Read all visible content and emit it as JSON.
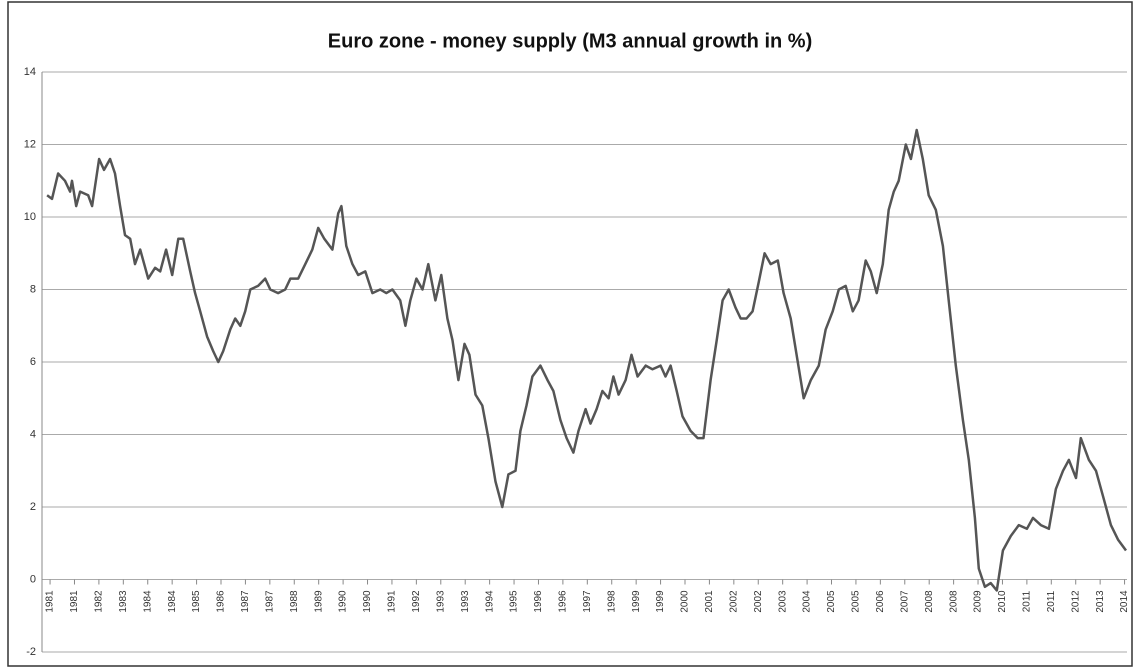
{
  "chart_data": {
    "type": "line",
    "title": "Euro zone - money supply (M3 annual growth in %)",
    "x": [
      -0.12,
      0.08,
      0.33,
      0.61,
      0.82,
      0.9,
      1.07,
      1.23,
      1.56,
      1.72,
      2.01,
      2.21,
      2.46,
      2.66,
      2.87,
      3.07,
      3.28,
      3.48,
      3.69,
      4.02,
      4.3,
      4.51,
      4.75,
      5.0,
      5.25,
      5.45,
      5.74,
      5.94,
      6.15,
      6.43,
      6.68,
      6.89,
      7.09,
      7.38,
      7.58,
      7.79,
      7.99,
      8.2,
      8.52,
      8.81,
      9.02,
      9.34,
      9.63,
      9.84,
      10.16,
      10.45,
      10.74,
      10.98,
      11.23,
      11.56,
      11.8,
      11.93,
      12.13,
      12.38,
      12.62,
      12.91,
      13.2,
      13.52,
      13.77,
      14.02,
      14.34,
      14.55,
      14.75,
      15.0,
      15.25,
      15.49,
      15.78,
      16.02,
      16.27,
      16.48,
      16.72,
      16.97,
      17.17,
      17.42,
      17.7,
      17.95,
      18.24,
      18.52,
      18.77,
      19.06,
      19.26,
      19.51,
      19.75,
      20.08,
      20.37,
      20.61,
      20.9,
      21.15,
      21.43,
      21.64,
      21.93,
      22.13,
      22.38,
      22.62,
      22.87,
      23.07,
      23.28,
      23.57,
      23.81,
      24.06,
      24.39,
      24.67,
      25.0,
      25.2,
      25.41,
      25.66,
      25.9,
      26.23,
      26.52,
      26.76,
      27.05,
      27.3,
      27.54,
      27.79,
      28.07,
      28.28,
      28.52,
      28.77,
      29.02,
      29.26,
      29.51,
      29.8,
      30.04,
      30.33,
      30.57,
      30.86,
      31.15,
      31.48,
      31.76,
      32.05,
      32.3,
      32.58,
      32.87,
      33.11,
      33.4,
      33.61,
      33.85,
      34.1,
      34.34,
      34.55,
      34.75,
      35.04,
      35.25,
      35.49,
      35.74,
      35.98,
      36.27,
      36.56,
      36.8,
      37.09,
      37.38,
      37.62,
      37.87,
      38.03,
      38.28,
      38.52,
      38.77,
      39.02,
      39.34,
      39.67,
      40.0,
      40.25,
      40.57,
      40.9,
      41.19,
      41.48,
      41.72,
      42.01,
      42.21,
      42.54,
      42.83,
      43.16,
      43.44,
      43.73,
      44.06
    ],
    "series": [
      {
        "color": "#555555",
        "values": [
          10.6,
          10.5,
          11.2,
          11.0,
          10.7,
          11.0,
          10.3,
          10.7,
          10.6,
          10.3,
          11.6,
          11.3,
          11.6,
          11.2,
          10.3,
          9.5,
          9.4,
          8.7,
          9.1,
          8.3,
          8.6,
          8.5,
          9.1,
          8.4,
          9.4,
          9.4,
          8.5,
          7.9,
          7.4,
          6.7,
          6.3,
          6.0,
          6.3,
          6.9,
          7.2,
          7.0,
          7.4,
          8.0,
          8.1,
          8.3,
          8.0,
          7.9,
          8.0,
          8.3,
          8.3,
          8.7,
          9.1,
          9.7,
          9.4,
          9.1,
          10.1,
          10.3,
          9.2,
          8.7,
          8.4,
          8.5,
          7.9,
          8.0,
          7.9,
          8.0,
          7.7,
          7.0,
          7.7,
          8.3,
          8.0,
          8.7,
          7.7,
          8.4,
          7.2,
          6.6,
          5.5,
          6.5,
          6.2,
          5.1,
          4.8,
          3.9,
          2.7,
          2.0,
          2.9,
          3.0,
          4.1,
          4.8,
          5.6,
          5.9,
          5.5,
          5.2,
          4.4,
          3.9,
          3.5,
          4.1,
          4.7,
          4.3,
          4.7,
          5.2,
          5.0,
          5.6,
          5.1,
          5.5,
          6.2,
          5.6,
          5.9,
          5.8,
          5.9,
          5.6,
          5.9,
          5.2,
          4.5,
          4.1,
          3.9,
          3.9,
          5.5,
          6.6,
          7.7,
          8.0,
          7.5,
          7.2,
          7.2,
          7.4,
          8.2,
          9.0,
          8.7,
          8.8,
          7.9,
          7.2,
          6.2,
          5.0,
          5.5,
          5.9,
          6.9,
          7.4,
          8.0,
          8.1,
          7.4,
          7.7,
          8.8,
          8.5,
          7.9,
          8.7,
          10.2,
          10.7,
          11.0,
          12.0,
          11.6,
          12.4,
          11.6,
          10.6,
          10.2,
          9.2,
          7.7,
          5.9,
          4.4,
          3.3,
          1.7,
          0.3,
          -0.2,
          -0.1,
          -0.3,
          0.8,
          1.2,
          1.5,
          1.4,
          1.7,
          1.5,
          1.4,
          2.5,
          3.0,
          3.3,
          2.8,
          3.9,
          3.3,
          3.0,
          2.2,
          1.5,
          1.1,
          0.8
        ]
      }
    ],
    "xlim": [
      -0.33,
      44.1
    ],
    "xticks": [
      {
        "value": 0,
        "label": "1981"
      },
      {
        "value": 1,
        "label": "1981"
      },
      {
        "value": 2,
        "label": "1982"
      },
      {
        "value": 3,
        "label": "1983"
      },
      {
        "value": 4,
        "label": "1984"
      },
      {
        "value": 5,
        "label": "1984"
      },
      {
        "value": 6,
        "label": "1985"
      },
      {
        "value": 7,
        "label": "1986"
      },
      {
        "value": 8,
        "label": "1987"
      },
      {
        "value": 9,
        "label": "1987"
      },
      {
        "value": 10,
        "label": "1988"
      },
      {
        "value": 11,
        "label": "1989"
      },
      {
        "value": 12,
        "label": "1990"
      },
      {
        "value": 13,
        "label": "1990"
      },
      {
        "value": 14,
        "label": "1991"
      },
      {
        "value": 15,
        "label": "1992"
      },
      {
        "value": 16,
        "label": "1993"
      },
      {
        "value": 17,
        "label": "1993"
      },
      {
        "value": 18,
        "label": "1994"
      },
      {
        "value": 19,
        "label": "1995"
      },
      {
        "value": 20,
        "label": "1996"
      },
      {
        "value": 21,
        "label": "1996"
      },
      {
        "value": 22,
        "label": "1997"
      },
      {
        "value": 23,
        "label": "1998"
      },
      {
        "value": 24,
        "label": "1999"
      },
      {
        "value": 25,
        "label": "1999"
      },
      {
        "value": 26,
        "label": "2000"
      },
      {
        "value": 27,
        "label": "2001"
      },
      {
        "value": 28,
        "label": "2002"
      },
      {
        "value": 29,
        "label": "2002"
      },
      {
        "value": 30,
        "label": "2003"
      },
      {
        "value": 31,
        "label": "2004"
      },
      {
        "value": 32,
        "label": "2005"
      },
      {
        "value": 33,
        "label": "2005"
      },
      {
        "value": 34,
        "label": "2006"
      },
      {
        "value": 35,
        "label": "2007"
      },
      {
        "value": 36,
        "label": "2008"
      },
      {
        "value": 37,
        "label": "2008"
      },
      {
        "value": 38,
        "label": "2009"
      },
      {
        "value": 39,
        "label": "2010"
      },
      {
        "value": 40,
        "label": "2011"
      },
      {
        "value": 41,
        "label": "2011"
      },
      {
        "value": 42,
        "label": "2012"
      },
      {
        "value": 43,
        "label": "2013"
      },
      {
        "value": 44,
        "label": "2014"
      }
    ],
    "ylim": [
      -2,
      14
    ],
    "yticks": [
      -2,
      0,
      2,
      4,
      6,
      8,
      10,
      12,
      14
    ],
    "grid": true
  }
}
